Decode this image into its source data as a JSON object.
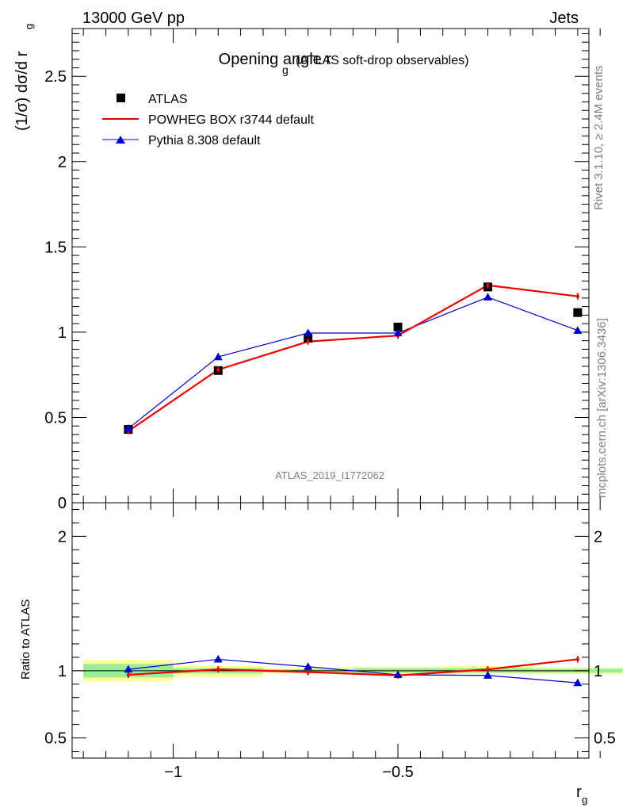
{
  "header": {
    "energy_label": "13000 GeV pp",
    "category_label": "Jets"
  },
  "side_labels": {
    "rivet": "Rivet 3.1.10, ≥ 2.4M events",
    "source": "mcplots.cern.ch [arXiv:1306.3436]"
  },
  "chart_data": [
    {
      "type": "scatter",
      "title": "Opening angle r",
      "title_subscript": "g",
      "subtitle": "(ATLAS soft-drop observables)",
      "watermark": "ATLAS_2019_I1772062",
      "ylabel_main": "(1/σ) dσ/d r",
      "ylabel_sub": "g",
      "xlim": [
        -1.225,
        -0.075
      ],
      "ylim": [
        0,
        2.78
      ],
      "y_ticks": [
        {
          "value": 0,
          "label": "0"
        },
        {
          "value": 0.5,
          "label": "0.5"
        },
        {
          "value": 1,
          "label": "1"
        },
        {
          "value": 1.5,
          "label": "1.5"
        },
        {
          "value": 2,
          "label": "2"
        },
        {
          "value": 2.5,
          "label": "2.5"
        }
      ],
      "bins": [
        -1.2,
        -1.0,
        -0.8,
        -0.6,
        -0.4,
        -0.2
      ],
      "x": [
        -1.1,
        -0.9,
        -0.7,
        -0.5,
        -0.3,
        -0.1
      ],
      "legend_position": "top-left",
      "series": [
        {
          "name": "ATLAS",
          "marker": "square",
          "color": "#000000",
          "values": [
            0.43,
            0.775,
            0.965,
            1.03,
            1.265,
            1.115
          ]
        },
        {
          "name": "POWHEG BOX r3744 default",
          "marker": "line",
          "color": "#ee0000",
          "values": [
            0.42,
            0.78,
            0.945,
            0.98,
            1.275,
            1.21
          ]
        },
        {
          "name": "Pythia 8.308 default",
          "marker": "triangle",
          "color": "#0000cc",
          "values": [
            0.435,
            0.855,
            0.995,
            0.995,
            1.205,
            1.01
          ]
        }
      ]
    },
    {
      "type": "scatter",
      "ylabel": "Ratio to ATLAS",
      "xlabel_main": "r",
      "xlabel_sub": "g",
      "xlim": [
        -1.225,
        -0.075
      ],
      "ylim": [
        0.35,
        2.25
      ],
      "x_ticks": [
        {
          "value": -1,
          "label": "−1"
        },
        {
          "value": -0.5,
          "label": "−0.5"
        }
      ],
      "y_ticks": [
        {
          "value": 0.5,
          "label": "0.5"
        },
        {
          "value": 1,
          "label": "1"
        },
        {
          "value": 2,
          "label": "2"
        }
      ],
      "uncertainty_bands": [
        {
          "x_range": [
            -1.2,
            -1.0
          ],
          "stat": [
            0.95,
            1.05
          ],
          "total": [
            0.92,
            1.08
          ]
        },
        {
          "x_range": [
            -1.0,
            -0.8
          ],
          "stat": [
            0.98,
            1.02
          ],
          "total": [
            0.955,
            1.035
          ]
        },
        {
          "x_range": [
            -0.8,
            -0.6
          ],
          "stat": [
            0.99,
            1.01
          ],
          "total": [
            0.98,
            1.02
          ]
        },
        {
          "x_range": [
            -0.6,
            -0.4
          ],
          "stat": [
            0.985,
            1.02
          ],
          "total": [
            0.975,
            1.03
          ]
        },
        {
          "x_range": [
            -0.4,
            -0.2
          ],
          "stat": [
            0.985,
            1.02
          ],
          "total": [
            0.975,
            1.035
          ]
        },
        {
          "x_range": [
            -0.2,
            0.0
          ],
          "stat": [
            0.985,
            1.015
          ],
          "total": [
            0.975,
            1.025
          ]
        }
      ],
      "x": [
        -1.1,
        -0.9,
        -0.7,
        -0.5,
        -0.3,
        -0.1
      ],
      "series": [
        {
          "name": "POWHEG BOX r3744 default",
          "color": "#ee0000",
          "values": [
            0.97,
            1.01,
            0.99,
            0.965,
            1.01,
            1.085
          ]
        },
        {
          "name": "Pythia 8.308 default",
          "color": "#0000cc",
          "values": [
            1.01,
            1.085,
            1.03,
            0.97,
            0.965,
            0.91
          ]
        }
      ]
    }
  ]
}
